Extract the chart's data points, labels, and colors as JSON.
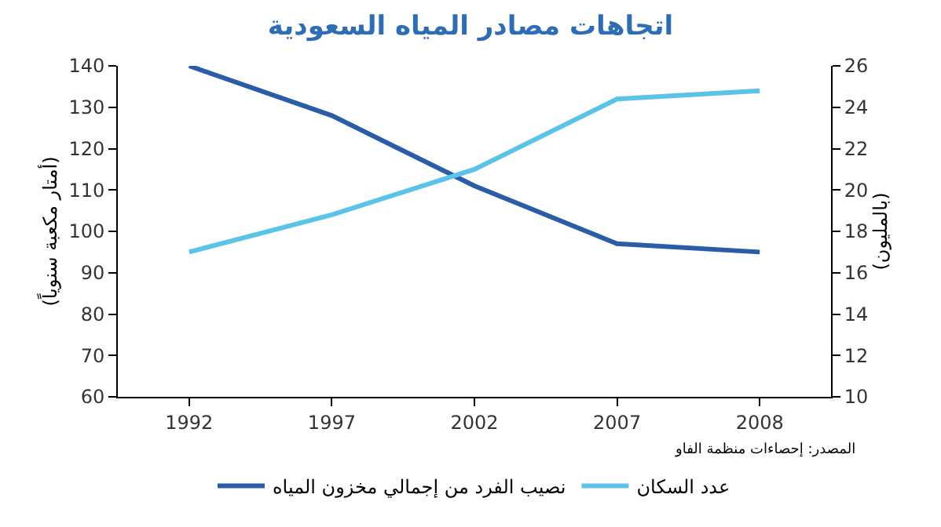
{
  "chart_data": {
    "type": "line",
    "title": "اتجاهات مصادر المياه السعودية",
    "ylabel": "(أمتار مكعبة سنوياً)",
    "y2label": "(بالمليون)",
    "categories": [
      "1992",
      "1997",
      "2002",
      "2007",
      "2008"
    ],
    "series": [
      {
        "name": "نصيب الفرد من إجمالي مخزون المياه",
        "color": "#2a5ca8",
        "values": [
          140,
          128,
          111,
          97,
          95
        ]
      },
      {
        "name": "عدد السكان",
        "color": "#5bc3e8",
        "axis": "y2",
        "values": [
          17,
          18.8,
          21,
          24.4,
          24.8
        ]
      }
    ],
    "ylim": [
      60,
      140
    ],
    "yticks": [
      60,
      70,
      80,
      90,
      100,
      110,
      120,
      130,
      140
    ],
    "y2lim": [
      10,
      26
    ],
    "y2ticks": [
      10,
      12,
      14,
      16,
      18,
      20,
      22,
      24,
      26
    ],
    "grid": false,
    "legend": "bottom",
    "marker": "none",
    "line_style": "solid",
    "annotations": [
      "المصدر: إحصاءات منظمة الفاو"
    ]
  }
}
